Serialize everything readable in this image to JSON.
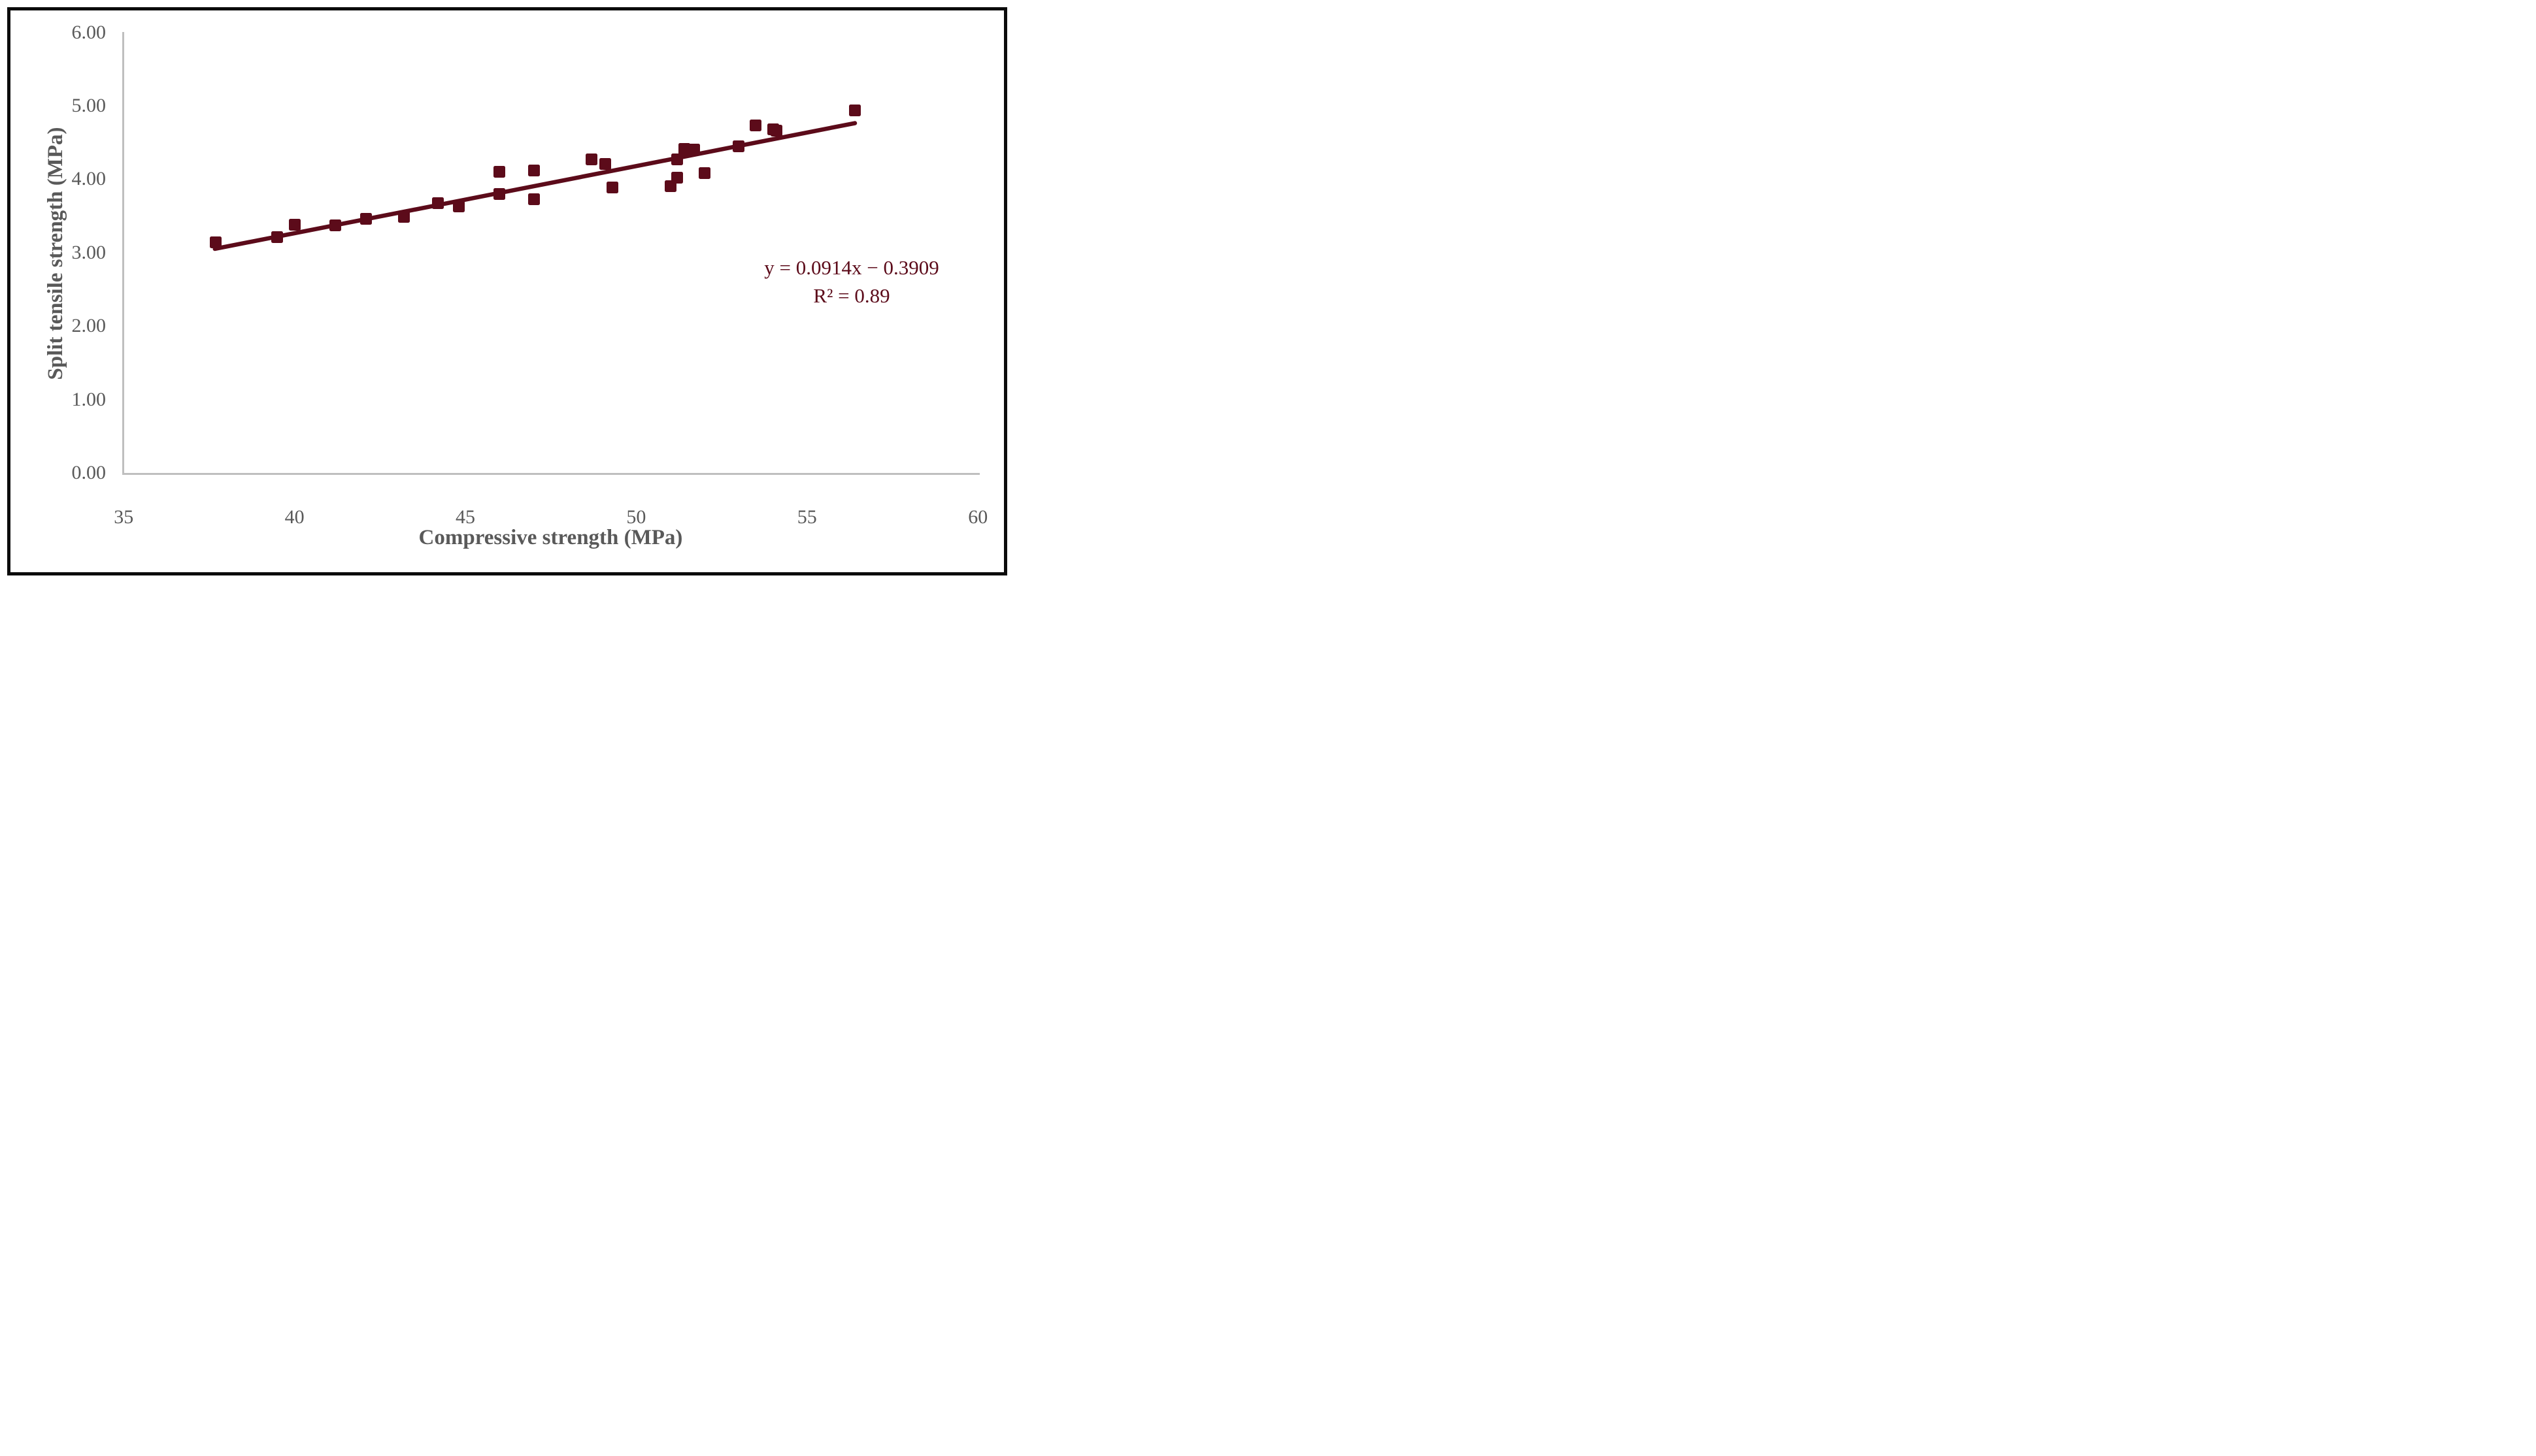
{
  "chart_data": {
    "type": "scatter",
    "title": "",
    "xlabel": "Compressive strength (MPa)",
    "ylabel": "Split tensile strength (MPa)",
    "xlim": [
      35,
      60
    ],
    "ylim": [
      0,
      6
    ],
    "x_tick_values": [
      35,
      40,
      45,
      50,
      55,
      60
    ],
    "x_tick_labels": [
      "35",
      "40",
      "45",
      "50",
      "55",
      "60"
    ],
    "y_tick_values": [
      0,
      1,
      2,
      3,
      4,
      5,
      6
    ],
    "y_tick_labels": [
      "0.00",
      "1.00",
      "2.00",
      "3.00",
      "4.00",
      "5.00",
      "6.00"
    ],
    "grid": false,
    "legend_position": "none",
    "points": [
      [
        37.7,
        3.14
      ],
      [
        39.5,
        3.21
      ],
      [
        40.0,
        3.38
      ],
      [
        41.2,
        3.37
      ],
      [
        42.1,
        3.46
      ],
      [
        43.2,
        3.49
      ],
      [
        44.2,
        3.67
      ],
      [
        44.8,
        3.63
      ],
      [
        46.0,
        4.1
      ],
      [
        46.0,
        3.8
      ],
      [
        47.0,
        4.12
      ],
      [
        47.0,
        3.73
      ],
      [
        48.7,
        4.27
      ],
      [
        49.1,
        4.21
      ],
      [
        49.3,
        3.89
      ],
      [
        51.0,
        3.91
      ],
      [
        51.2,
        4.02
      ],
      [
        51.2,
        4.27
      ],
      [
        51.4,
        4.41
      ],
      [
        51.7,
        4.4
      ],
      [
        52.0,
        4.08
      ],
      [
        53.0,
        4.45
      ],
      [
        53.5,
        4.73
      ],
      [
        54.0,
        4.68
      ],
      [
        54.1,
        4.66
      ],
      [
        56.4,
        4.94
      ]
    ],
    "trendline": {
      "equation_label": "y = 0.0914x − 0.3909",
      "r_squared_label": "R² = 0.89",
      "slope": 0.0914,
      "intercept": -0.3909,
      "x_start": 37.67,
      "x_end": 56.4
    },
    "colors": {
      "marker": "#5c0b1a",
      "trend_line": "#5c0b1a",
      "equation_text": "#5c0b1a",
      "axis_line": "#bfbfbf",
      "tick_text": "#595959",
      "frame_border": "#0b0b0b",
      "background": "#ffffff"
    }
  }
}
